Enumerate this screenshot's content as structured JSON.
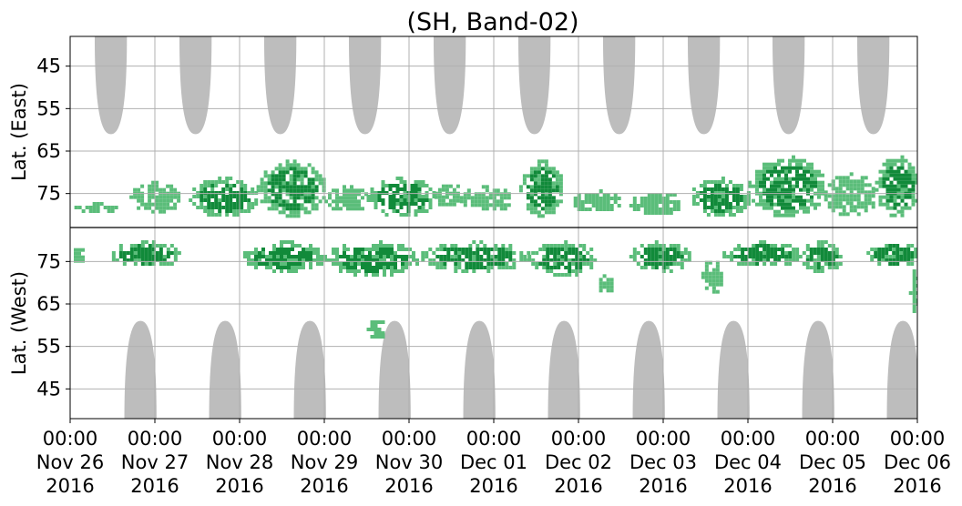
{
  "chart_data": {
    "type": "heatmap",
    "title": "(SH, Band-02)",
    "x_axis": {
      "range": [
        "2016-11-26 00:00",
        "2016-12-06 00:00"
      ],
      "ticks": [
        {
          "time": "00:00",
          "date": "Nov 26",
          "year": "2016"
        },
        {
          "time": "00:00",
          "date": "Nov 27",
          "year": "2016"
        },
        {
          "time": "00:00",
          "date": "Nov 28",
          "year": "2016"
        },
        {
          "time": "00:00",
          "date": "Nov 29",
          "year": "2016"
        },
        {
          "time": "00:00",
          "date": "Nov 30",
          "year": "2016"
        },
        {
          "time": "00:00",
          "date": "Dec 01",
          "year": "2016"
        },
        {
          "time": "00:00",
          "date": "Dec 02",
          "year": "2016"
        },
        {
          "time": "00:00",
          "date": "Dec 03",
          "year": "2016"
        },
        {
          "time": "00:00",
          "date": "Dec 04",
          "year": "2016"
        },
        {
          "time": "00:00",
          "date": "Dec 05",
          "year": "2016"
        },
        {
          "time": "00:00",
          "date": "Dec 06",
          "year": "2016"
        }
      ]
    },
    "east_panel": {
      "ylabel": "Lat. (East)",
      "ylim": [
        38,
        83
      ],
      "tick_labels": [
        "45",
        "55",
        "65",
        "75"
      ]
    },
    "west_panel": {
      "ylabel": "Lat. (West)",
      "ylim": [
        38,
        83
      ],
      "tick_labels": [
        "75",
        "65",
        "55",
        "45"
      ]
    },
    "grid": true,
    "colors": {
      "daylight_mask": "#bdbdbd",
      "echo_strong": "#118a3a",
      "echo_weak": "#5bbd7a",
      "grid": "#b0b0b0",
      "divider": "#000000"
    },
    "daylight_mask": {
      "description": "grey regions of daylight repeating once per day",
      "east_min_lat": 61,
      "west_min_lat": 61,
      "east_center_day_offsets": [
        0.48,
        1.48,
        2.48,
        3.48,
        4.48,
        5.48,
        6.48,
        7.48,
        8.48,
        9.48
      ],
      "west_center_day_offsets": [
        0.83,
        1.83,
        2.83,
        3.83,
        4.83,
        5.83,
        6.83,
        7.83,
        8.83,
        9.83
      ],
      "max_half_width_days": 0.19
    },
    "echo_regions": [
      {
        "panel": "east",
        "start_day": 0.05,
        "end_day": 0.55,
        "lat_from": 77,
        "lat_to": 79,
        "level": "weak"
      },
      {
        "panel": "east",
        "start_day": 0.7,
        "end_day": 1.3,
        "lat_from": 72,
        "lat_to": 79,
        "level": "weak"
      },
      {
        "panel": "east",
        "start_day": 1.4,
        "end_day": 2.2,
        "lat_from": 71,
        "lat_to": 80,
        "level": "strong"
      },
      {
        "panel": "east",
        "start_day": 2.2,
        "end_day": 3.0,
        "lat_from": 67,
        "lat_to": 80,
        "level": "strong"
      },
      {
        "panel": "east",
        "start_day": 3.0,
        "end_day": 3.5,
        "lat_from": 73,
        "lat_to": 79,
        "level": "weak"
      },
      {
        "panel": "east",
        "start_day": 3.5,
        "end_day": 4.3,
        "lat_from": 71,
        "lat_to": 80,
        "level": "strong"
      },
      {
        "panel": "east",
        "start_day": 4.3,
        "end_day": 4.6,
        "lat_from": 72,
        "lat_to": 78,
        "level": "weak"
      },
      {
        "panel": "east",
        "start_day": 4.6,
        "end_day": 5.2,
        "lat_from": 73,
        "lat_to": 79,
        "level": "weak"
      },
      {
        "panel": "east",
        "start_day": 5.3,
        "end_day": 5.8,
        "lat_from": 67,
        "lat_to": 80,
        "level": "strong"
      },
      {
        "panel": "east",
        "start_day": 5.9,
        "end_day": 6.5,
        "lat_from": 74,
        "lat_to": 79,
        "level": "weak"
      },
      {
        "panel": "east",
        "start_day": 6.6,
        "end_day": 7.2,
        "lat_from": 74,
        "lat_to": 80,
        "level": "weak"
      },
      {
        "panel": "east",
        "start_day": 7.3,
        "end_day": 8.0,
        "lat_from": 71,
        "lat_to": 80,
        "level": "strong"
      },
      {
        "panel": "east",
        "start_day": 8.0,
        "end_day": 8.9,
        "lat_from": 66,
        "lat_to": 80,
        "level": "strong"
      },
      {
        "panel": "east",
        "start_day": 8.9,
        "end_day": 9.5,
        "lat_from": 70,
        "lat_to": 80,
        "level": "weak"
      },
      {
        "panel": "east",
        "start_day": 9.5,
        "end_day": 10.0,
        "lat_from": 66,
        "lat_to": 80,
        "level": "strong"
      },
      {
        "panel": "west",
        "start_day": 0.0,
        "end_day": 0.15,
        "lat_from": 75,
        "lat_to": 79,
        "level": "weak"
      },
      {
        "panel": "west",
        "start_day": 0.45,
        "end_day": 1.3,
        "lat_from": 74,
        "lat_to": 80,
        "level": "strong"
      },
      {
        "panel": "west",
        "start_day": 2.0,
        "end_day": 3.0,
        "lat_from": 73,
        "lat_to": 80,
        "level": "strong"
      },
      {
        "panel": "west",
        "start_day": 3.0,
        "end_day": 4.1,
        "lat_from": 72,
        "lat_to": 80,
        "level": "strong"
      },
      {
        "panel": "west",
        "start_day": 3.5,
        "end_day": 3.7,
        "lat_from": 57,
        "lat_to": 62,
        "level": "weak"
      },
      {
        "panel": "west",
        "start_day": 4.1,
        "end_day": 5.4,
        "lat_from": 73,
        "lat_to": 80,
        "level": "strong"
      },
      {
        "panel": "west",
        "start_day": 5.4,
        "end_day": 6.2,
        "lat_from": 72,
        "lat_to": 80,
        "level": "strong"
      },
      {
        "panel": "west",
        "start_day": 6.2,
        "end_day": 6.4,
        "lat_from": 68,
        "lat_to": 72,
        "level": "weak"
      },
      {
        "panel": "west",
        "start_day": 6.6,
        "end_day": 7.3,
        "lat_from": 73,
        "lat_to": 80,
        "level": "strong"
      },
      {
        "panel": "west",
        "start_day": 7.45,
        "end_day": 7.7,
        "lat_from": 68,
        "lat_to": 76,
        "level": "weak"
      },
      {
        "panel": "west",
        "start_day": 7.7,
        "end_day": 8.6,
        "lat_from": 74,
        "lat_to": 80,
        "level": "strong"
      },
      {
        "panel": "west",
        "start_day": 8.6,
        "end_day": 9.1,
        "lat_from": 73,
        "lat_to": 80,
        "level": "strong"
      },
      {
        "panel": "west",
        "start_day": 9.4,
        "end_day": 10.0,
        "lat_from": 74,
        "lat_to": 80,
        "level": "strong"
      },
      {
        "panel": "west",
        "start_day": 9.9,
        "end_day": 10.0,
        "lat_from": 63,
        "lat_to": 74,
        "level": "weak"
      }
    ]
  }
}
